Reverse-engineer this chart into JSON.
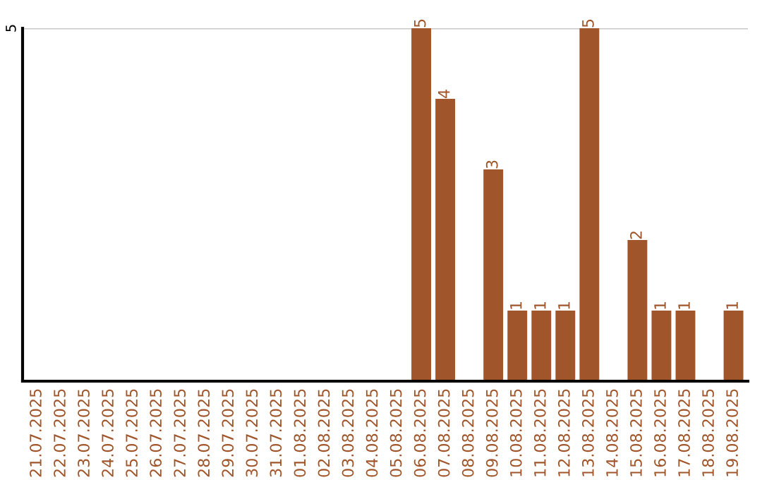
{
  "chart_data": {
    "type": "bar",
    "categories": [
      "21.07.2025",
      "22.07.2025",
      "23.07.2025",
      "24.07.2025",
      "25.07.2025",
      "26.07.2025",
      "27.07.2025",
      "28.07.2025",
      "29.07.2025",
      "30.07.2025",
      "31.07.2025",
      "01.08.2025",
      "02.08.2025",
      "03.08.2025",
      "04.08.2025",
      "05.08.2025",
      "06.08.2025",
      "07.08.2025",
      "08.08.2025",
      "09.08.2025",
      "10.08.2025",
      "11.08.2025",
      "12.08.2025",
      "13.08.2025",
      "14.08.2025",
      "15.08.2025",
      "16.08.2025",
      "17.08.2025",
      "18.08.2025",
      "19.08.2025"
    ],
    "values": [
      null,
      null,
      null,
      null,
      null,
      null,
      null,
      null,
      null,
      null,
      null,
      null,
      null,
      null,
      null,
      null,
      5,
      4,
      null,
      3,
      1,
      1,
      1,
      5,
      null,
      2,
      1,
      1,
      null,
      1
    ],
    "data_labels": true,
    "color": "#a0562a",
    "ylim": [
      0,
      5
    ],
    "yticks": [
      5
    ],
    "ref_lines": [
      {
        "axis": "y",
        "value": 5,
        "color": "#c8c8c8"
      }
    ],
    "legend": false
  }
}
